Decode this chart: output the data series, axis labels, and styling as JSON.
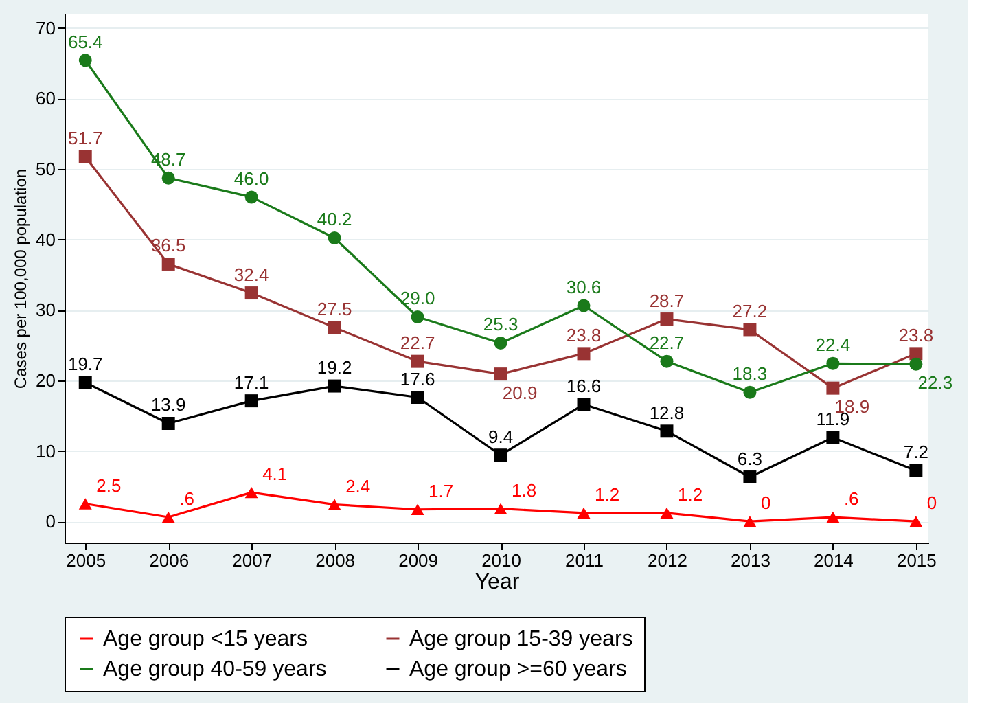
{
  "chart_data": {
    "type": "line",
    "xlabel": "Year",
    "ylabel": "Cases per 100,000 population",
    "x": [
      2005,
      2006,
      2007,
      2008,
      2009,
      2010,
      2011,
      2012,
      2013,
      2014,
      2015
    ],
    "series": [
      {
        "name": "Age group <15 years",
        "color": "#ff0000",
        "marker": "triangle",
        "values": [
          2.5,
          0.6,
          4.1,
          2.4,
          1.7,
          1.8,
          1.2,
          1.2,
          0,
          0.6,
          0
        ],
        "value_labels": [
          "2.5",
          ".6",
          "4.1",
          "2.4",
          "1.7",
          "1.8",
          "1.2",
          "1.2",
          "0",
          ".6",
          "0"
        ]
      },
      {
        "name": "Age group 15-39 years",
        "color": "#993333",
        "marker": "square",
        "values": [
          51.7,
          36.5,
          32.4,
          27.5,
          22.7,
          20.9,
          23.8,
          28.7,
          27.2,
          18.9,
          23.8
        ],
        "value_labels": [
          "51.7",
          "36.5",
          "32.4",
          "27.5",
          "22.7",
          "20.9",
          "23.8",
          "28.7",
          "27.2",
          "18.9",
          "23.8"
        ]
      },
      {
        "name": "Age group 40-59 years",
        "color": "#1a7a1a",
        "marker": "circle",
        "values": [
          65.4,
          48.7,
          46.0,
          40.2,
          29.0,
          25.3,
          30.6,
          22.7,
          18.3,
          22.4,
          22.3
        ],
        "value_labels": [
          "65.4",
          "48.7",
          "46.0",
          "40.2",
          "29.0",
          "25.3",
          "30.6",
          "22.7",
          "18.3",
          "22.4",
          "22.3"
        ]
      },
      {
        "name": "Age group >=60 years",
        "color": "#000000",
        "marker": "square",
        "values": [
          19.7,
          13.9,
          17.1,
          19.2,
          17.6,
          9.4,
          16.6,
          12.8,
          6.3,
          11.9,
          7.2
        ],
        "value_labels": [
          "19.7",
          "13.9",
          "17.1",
          "19.2",
          "17.6",
          "9.4",
          "16.6",
          "12.8",
          "6.3",
          "11.9",
          "7.2"
        ]
      }
    ],
    "xlim": [
      2004.75,
      2015.15
    ],
    "xticks": [
      2005,
      2006,
      2007,
      2008,
      2009,
      2010,
      2011,
      2012,
      2013,
      2014,
      2015
    ],
    "ylim": [
      -3,
      72
    ],
    "yticks": [
      0,
      10,
      20,
      30,
      40,
      50,
      60,
      70
    ],
    "grid": "y",
    "legend": "bottom"
  }
}
